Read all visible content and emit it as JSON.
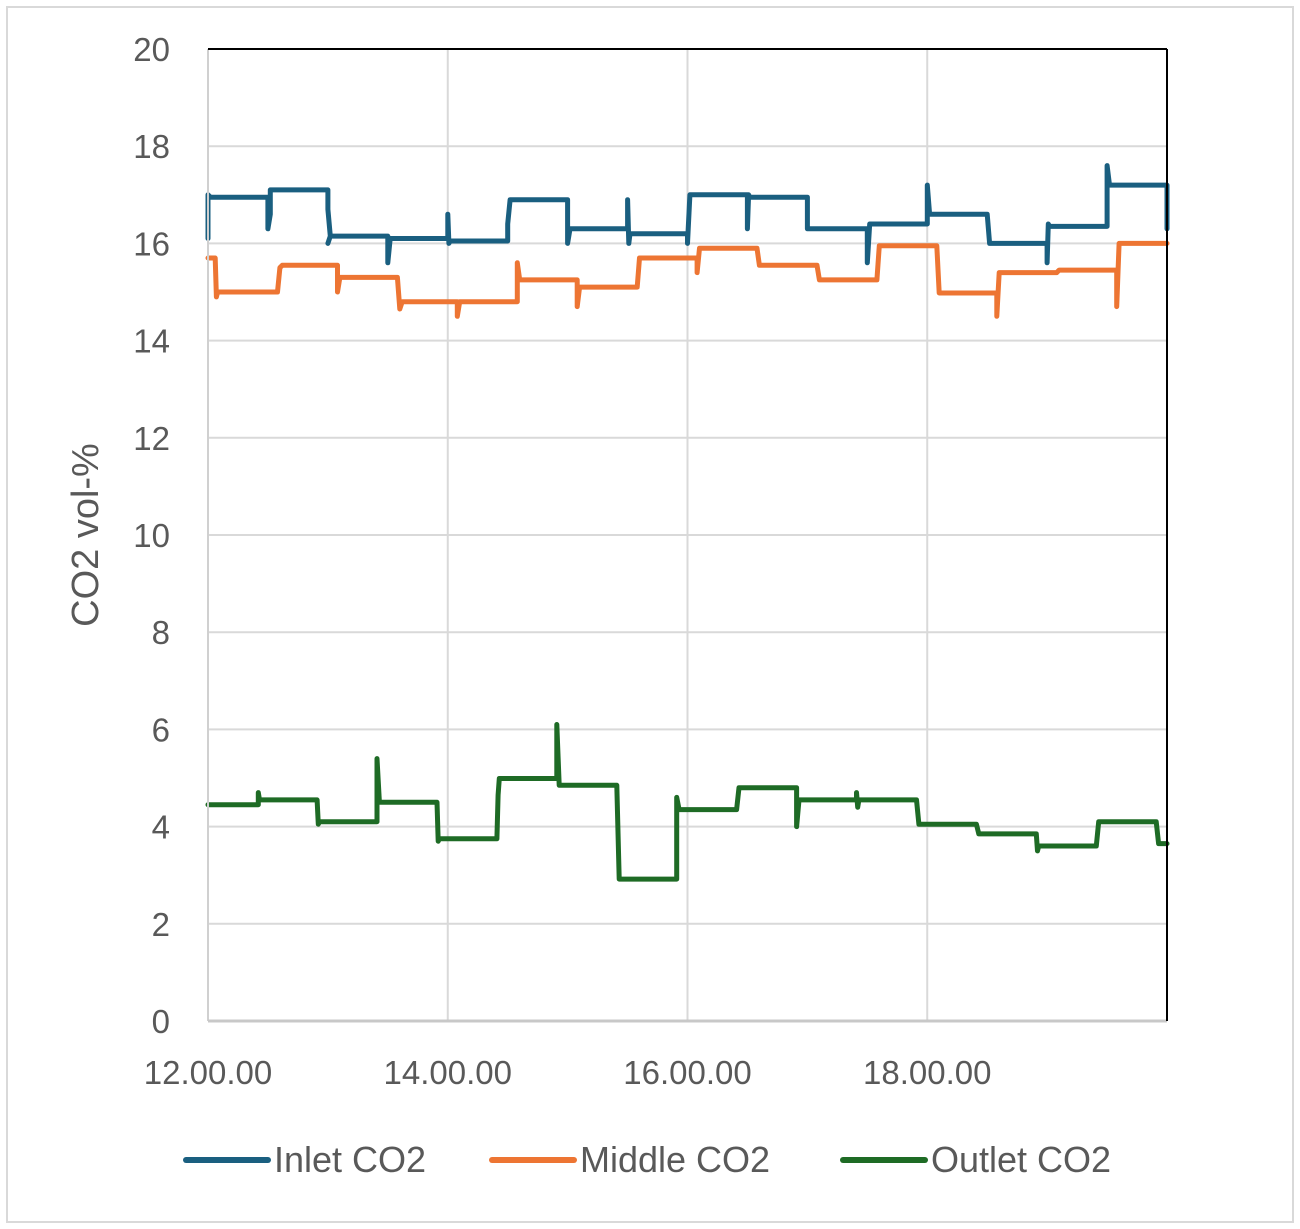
{
  "chart_data": {
    "type": "line",
    "title": "",
    "xlabel": "",
    "ylabel": "CO2 vol-%",
    "ylim": [
      0,
      20
    ],
    "yticks": [
      0,
      2,
      4,
      6,
      8,
      10,
      12,
      14,
      16,
      18,
      20
    ],
    "xlim_hours": [
      12,
      20
    ],
    "xticks": [
      {
        "hour": 12,
        "label": "12.00.00"
      },
      {
        "hour": 14,
        "label": "14.00.00"
      },
      {
        "hour": 16,
        "label": "16.00.00"
      },
      {
        "hour": 18,
        "label": "18.00.00"
      }
    ],
    "grid": true,
    "legend_position": "bottom",
    "series": [
      {
        "name": "Inlet CO2",
        "color": "#1a5f80",
        "points": [
          [
            12.0,
            16.1
          ],
          [
            12.0,
            17.0
          ],
          [
            12.02,
            16.95
          ],
          [
            12.5,
            16.95
          ],
          [
            12.5,
            16.3
          ],
          [
            12.52,
            16.6
          ],
          [
            12.52,
            17.1
          ],
          [
            13.0,
            17.1
          ],
          [
            13.0,
            16.7
          ],
          [
            13.02,
            16.15
          ],
          [
            13.0,
            16.0
          ],
          [
            13.02,
            16.15
          ],
          [
            13.5,
            16.15
          ],
          [
            13.5,
            15.6
          ],
          [
            13.52,
            16.1
          ],
          [
            14.0,
            16.1
          ],
          [
            14.0,
            16.6
          ],
          [
            14.01,
            16.0
          ],
          [
            14.02,
            16.05
          ],
          [
            14.5,
            16.05
          ],
          [
            14.5,
            16.4
          ],
          [
            14.52,
            16.9
          ],
          [
            15.0,
            16.9
          ],
          [
            15.0,
            16.0
          ],
          [
            15.02,
            16.3
          ],
          [
            15.5,
            16.3
          ],
          [
            15.5,
            16.9
          ],
          [
            15.51,
            16.0
          ],
          [
            15.52,
            16.2
          ],
          [
            16.0,
            16.2
          ],
          [
            16.0,
            16.0
          ],
          [
            16.02,
            17.0
          ],
          [
            16.5,
            17.0
          ],
          [
            16.5,
            16.3
          ],
          [
            16.51,
            17.0
          ],
          [
            16.52,
            16.95
          ],
          [
            17.0,
            16.95
          ],
          [
            17.0,
            16.3
          ],
          [
            17.02,
            16.3
          ],
          [
            17.5,
            16.3
          ],
          [
            17.5,
            15.6
          ],
          [
            17.52,
            16.4
          ],
          [
            18.0,
            16.4
          ],
          [
            18.0,
            17.2
          ],
          [
            18.02,
            16.6
          ],
          [
            18.5,
            16.6
          ],
          [
            18.52,
            16.0
          ],
          [
            19.0,
            16.0
          ],
          [
            19.0,
            15.6
          ],
          [
            19.01,
            16.4
          ],
          [
            19.02,
            16.35
          ],
          [
            19.5,
            16.35
          ],
          [
            19.5,
            17.6
          ],
          [
            19.52,
            17.2
          ],
          [
            20.0,
            17.2
          ],
          [
            20.0,
            16.3
          ]
        ]
      },
      {
        "name": "Middle CO2",
        "color": "#ed7533",
        "points": [
          [
            12.0,
            15.7
          ],
          [
            12.06,
            15.7
          ],
          [
            12.07,
            14.9
          ],
          [
            12.08,
            15.0
          ],
          [
            12.58,
            15.0
          ],
          [
            12.6,
            15.5
          ],
          [
            12.62,
            15.55
          ],
          [
            13.08,
            15.55
          ],
          [
            13.08,
            15.0
          ],
          [
            13.1,
            15.3
          ],
          [
            13.58,
            15.3
          ],
          [
            13.6,
            14.65
          ],
          [
            13.62,
            14.8
          ],
          [
            14.08,
            14.8
          ],
          [
            14.08,
            14.5
          ],
          [
            14.1,
            14.8
          ],
          [
            14.58,
            14.8
          ],
          [
            14.58,
            15.6
          ],
          [
            14.6,
            15.25
          ],
          [
            15.08,
            15.25
          ],
          [
            15.08,
            14.7
          ],
          [
            15.1,
            15.1
          ],
          [
            15.58,
            15.1
          ],
          [
            15.6,
            15.7
          ],
          [
            16.08,
            15.7
          ],
          [
            16.08,
            15.4
          ],
          [
            16.1,
            15.9
          ],
          [
            16.58,
            15.9
          ],
          [
            16.6,
            15.55
          ],
          [
            17.08,
            15.55
          ],
          [
            17.1,
            15.25
          ],
          [
            17.58,
            15.25
          ],
          [
            17.6,
            15.95
          ],
          [
            18.08,
            15.95
          ],
          [
            18.1,
            14.98
          ],
          [
            18.58,
            14.98
          ],
          [
            18.58,
            14.5
          ],
          [
            18.6,
            15.4
          ],
          [
            19.08,
            15.4
          ],
          [
            19.1,
            15.45
          ],
          [
            19.58,
            15.45
          ],
          [
            19.58,
            14.7
          ],
          [
            19.6,
            16.0
          ],
          [
            20.0,
            16.0
          ]
        ]
      },
      {
        "name": "Outlet CO2",
        "color": "#1e6b25",
        "points": [
          [
            12.0,
            4.45
          ],
          [
            12.42,
            4.45
          ],
          [
            12.42,
            4.7
          ],
          [
            12.43,
            4.55
          ],
          [
            12.91,
            4.55
          ],
          [
            12.92,
            4.05
          ],
          [
            12.93,
            4.1
          ],
          [
            13.41,
            4.1
          ],
          [
            13.41,
            5.4
          ],
          [
            13.43,
            4.5
          ],
          [
            13.91,
            4.5
          ],
          [
            13.92,
            3.7
          ],
          [
            13.93,
            3.75
          ],
          [
            14.41,
            3.75
          ],
          [
            14.42,
            4.65
          ],
          [
            14.43,
            4.99
          ],
          [
            14.91,
            4.99
          ],
          [
            14.91,
            6.1
          ],
          [
            14.93,
            4.85
          ],
          [
            15.41,
            4.85
          ],
          [
            15.43,
            2.92
          ],
          [
            15.91,
            2.92
          ],
          [
            15.91,
            4.6
          ],
          [
            15.93,
            4.35
          ],
          [
            16.41,
            4.35
          ],
          [
            16.43,
            4.8
          ],
          [
            16.91,
            4.8
          ],
          [
            16.91,
            4.0
          ],
          [
            16.93,
            4.55
          ],
          [
            17.41,
            4.55
          ],
          [
            17.41,
            4.7
          ],
          [
            17.42,
            4.4
          ],
          [
            17.43,
            4.55
          ],
          [
            17.91,
            4.55
          ],
          [
            17.93,
            4.05
          ],
          [
            18.41,
            4.05
          ],
          [
            18.43,
            3.85
          ],
          [
            18.91,
            3.85
          ],
          [
            18.92,
            3.5
          ],
          [
            18.93,
            3.6
          ],
          [
            19.41,
            3.6
          ],
          [
            19.43,
            4.1
          ],
          [
            19.91,
            4.1
          ],
          [
            19.93,
            3.65
          ],
          [
            20.0,
            3.65
          ]
        ]
      }
    ]
  }
}
